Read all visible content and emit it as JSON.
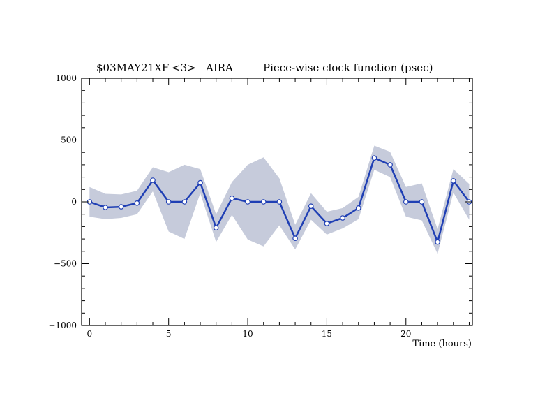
{
  "title": {
    "experiment": "$03MAY21XF",
    "scan": "<3>",
    "station": "AIRA",
    "description": "Piece-wise clock function (psec)"
  },
  "colors": {
    "line": "#1f3fb4",
    "band": "#c6cbdb",
    "marker_fill": "#ffffff",
    "axis": "#000000"
  },
  "chart_data": {
    "type": "line",
    "title": "Piece-wise clock function (psec)",
    "xlabel": "Time (hours)",
    "ylabel": "",
    "xlim": [
      -0.5,
      24.2
    ],
    "ylim": [
      -1000,
      1000
    ],
    "x_ticks": [
      0,
      5,
      10,
      15,
      20
    ],
    "y_ticks": [
      -1000,
      -500,
      0,
      500,
      1000
    ],
    "x_ticks_labels": [
      "0",
      "5",
      "10",
      "15",
      "20"
    ],
    "y_ticks_labels": [
      "−1000",
      "−500",
      "0",
      "500",
      "1000"
    ],
    "grid": false,
    "series": [
      {
        "x": [
          0,
          1,
          2,
          3,
          4,
          5,
          6,
          7,
          8,
          9,
          10,
          11,
          12,
          13,
          14,
          15,
          16,
          17,
          18,
          19,
          20,
          21,
          22,
          23,
          24
        ],
        "values": [
          0,
          -45,
          -40,
          -10,
          175,
          0,
          0,
          155,
          -210,
          30,
          0,
          0,
          0,
          -295,
          -35,
          -175,
          -130,
          -50,
          355,
          300,
          0,
          0,
          -325,
          170,
          0
        ],
        "upper": [
          120,
          65,
          60,
          90,
          280,
          240,
          300,
          265,
          -100,
          160,
          300,
          360,
          190,
          -185,
          70,
          -80,
          -50,
          40,
          455,
          405,
          120,
          150,
          -220,
          265,
          145
        ],
        "lower": [
          -120,
          -140,
          -130,
          -100,
          85,
          -240,
          -300,
          70,
          -325,
          -105,
          -305,
          -360,
          -190,
          -385,
          -145,
          -265,
          -215,
          -140,
          260,
          200,
          -120,
          -150,
          -420,
          75,
          -145
        ]
      }
    ]
  }
}
